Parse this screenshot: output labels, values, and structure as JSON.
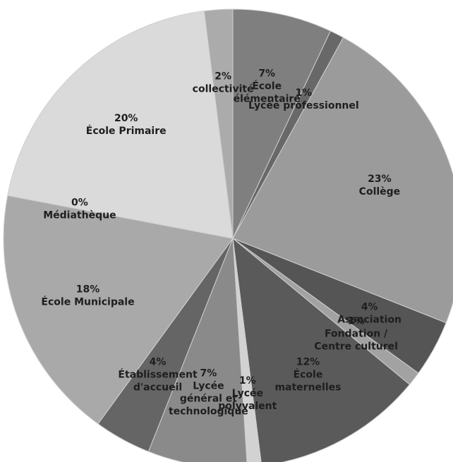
{
  "chart_data": {
    "type": "pie",
    "categories": [
      [
        "École",
        "élémentaire"
      ],
      [
        "Lycée professionnel"
      ],
      [
        "Collège"
      ],
      [
        "Association"
      ],
      [
        "Fondation /",
        "Centre culturel"
      ],
      [
        "École",
        "maternelles"
      ],
      [
        "Lycée",
        "polyvalent"
      ],
      [
        "Lycée",
        "général et",
        "technologique"
      ],
      [
        "Établissement",
        "d'accueil"
      ],
      [
        "École Municipale"
      ],
      [
        "Médiathèque"
      ],
      [
        "École Primaire"
      ],
      [
        "collectivité"
      ]
    ],
    "values": [
      7,
      1,
      23,
      4,
      1,
      12,
      1,
      7,
      4,
      18,
      0,
      20,
      2
    ],
    "value_labels": [
      "7%",
      "1%",
      "23%",
      "4%",
      "1%",
      "12%",
      "1%",
      "7%",
      "4%",
      "18%",
      "0%",
      "20%",
      "2%"
    ],
    "colors": [
      "#7f7f7f",
      "#686868",
      "#9b9b9b",
      "#555555",
      "#a2a2a2",
      "#5a5a5a",
      "#d2d2d2",
      "#8a8a8a",
      "#656565",
      "#a9a9a9",
      "#bebebe",
      "#dadada",
      "#ababab"
    ]
  }
}
